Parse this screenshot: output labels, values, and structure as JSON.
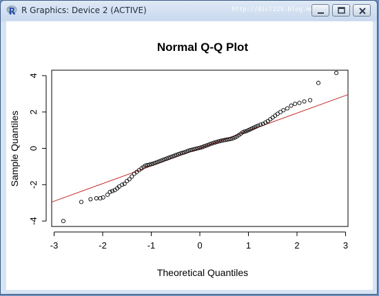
{
  "window": {
    "title": "R Graphics: Device 2 (ACTIVE)",
    "watermark": "http://dicl229.blog.me",
    "buttons": [
      "minimize",
      "maximize",
      "close"
    ]
  },
  "chart_data": {
    "type": "scatter",
    "title": "Normal Q-Q Plot",
    "xlabel": "Theoretical Quantiles",
    "ylabel": "Sample Quantiles",
    "xlim": [
      -3.05,
      3.05
    ],
    "ylim": [
      -4.3,
      4.3
    ],
    "xticks": [
      -3,
      -2,
      -1,
      0,
      1,
      2,
      3
    ],
    "yticks": [
      -4,
      -2,
      0,
      2,
      4
    ],
    "tick_labels_x": [
      "-3",
      "-2",
      "-1",
      "0",
      "1",
      "2",
      "3"
    ],
    "tick_labels_y": [
      "-4",
      "-2",
      "0",
      "2",
      "4"
    ],
    "grid": false,
    "point_style": "open circle",
    "point_color": "#000000",
    "reference_line": {
      "intercept": 0.0,
      "slope": 0.97,
      "color": "#c62828"
    },
    "points_x": [
      -2.81,
      -2.44,
      -2.25,
      -2.13,
      -2.05,
      -1.99,
      -1.9,
      -1.85,
      -1.8,
      -1.75,
      -1.7,
      -1.66,
      -1.6,
      -1.55,
      -1.5,
      -1.45,
      -1.4,
      -1.35,
      -1.3,
      -1.25,
      -1.2,
      -1.16,
      -1.12,
      -1.08,
      -1.04,
      -1.0,
      -0.96,
      -0.92,
      -0.88,
      -0.84,
      -0.8,
      -0.76,
      -0.72,
      -0.68,
      -0.64,
      -0.6,
      -0.56,
      -0.52,
      -0.48,
      -0.44,
      -0.4,
      -0.36,
      -0.32,
      -0.28,
      -0.24,
      -0.2,
      -0.16,
      -0.12,
      -0.08,
      -0.04,
      0.0,
      0.04,
      0.08,
      0.12,
      0.16,
      0.2,
      0.24,
      0.28,
      0.32,
      0.36,
      0.4,
      0.44,
      0.48,
      0.52,
      0.56,
      0.6,
      0.64,
      0.68,
      0.72,
      0.76,
      0.8,
      0.84,
      0.88,
      0.92,
      0.96,
      1.0,
      1.04,
      1.08,
      1.12,
      1.16,
      1.2,
      1.25,
      1.3,
      1.35,
      1.4,
      1.45,
      1.5,
      1.55,
      1.6,
      1.66,
      1.72,
      1.8,
      1.88,
      1.96,
      2.05,
      2.15,
      2.27,
      2.44,
      2.81
    ],
    "points_y": [
      -4.0,
      -2.95,
      -2.8,
      -2.75,
      -2.75,
      -2.7,
      -2.55,
      -2.4,
      -2.35,
      -2.3,
      -2.2,
      -2.1,
      -2.0,
      -1.95,
      -1.8,
      -1.7,
      -1.55,
      -1.4,
      -1.3,
      -1.2,
      -1.1,
      -1.02,
      -0.95,
      -0.92,
      -0.9,
      -0.87,
      -0.84,
      -0.8,
      -0.76,
      -0.72,
      -0.68,
      -0.64,
      -0.6,
      -0.56,
      -0.52,
      -0.48,
      -0.44,
      -0.4,
      -0.36,
      -0.32,
      -0.28,
      -0.25,
      -0.22,
      -0.18,
      -0.14,
      -0.1,
      -0.08,
      -0.05,
      -0.02,
      0.0,
      0.03,
      0.06,
      0.1,
      0.14,
      0.18,
      0.22,
      0.26,
      0.3,
      0.33,
      0.36,
      0.39,
      0.42,
      0.44,
      0.46,
      0.48,
      0.5,
      0.52,
      0.55,
      0.6,
      0.65,
      0.72,
      0.8,
      0.88,
      0.92,
      0.95,
      1.0,
      1.05,
      1.1,
      1.15,
      1.2,
      1.25,
      1.3,
      1.35,
      1.42,
      1.5,
      1.6,
      1.7,
      1.8,
      1.9,
      2.0,
      2.1,
      2.2,
      2.35,
      2.45,
      2.5,
      2.58,
      2.65,
      3.6,
      4.15
    ]
  }
}
